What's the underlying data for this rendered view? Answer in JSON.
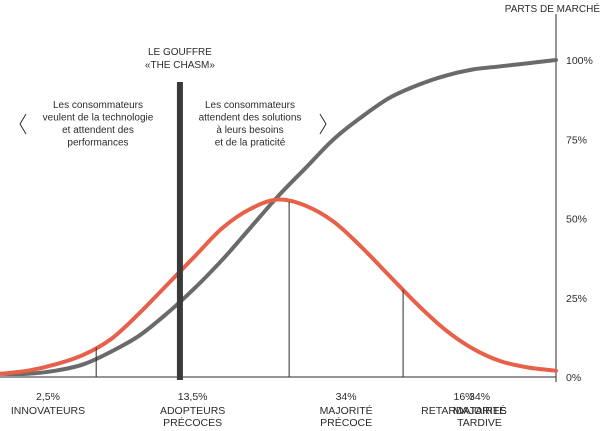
{
  "chart_data": {
    "type": "line",
    "title": "",
    "ylabel": "PARTS DE MARCHÉ",
    "xlabel": "",
    "ylim": [
      0,
      100
    ],
    "y_ticks": [
      "100%",
      "75%",
      "50%",
      "25%",
      "0%"
    ],
    "x": [
      0,
      5,
      10,
      15,
      20,
      25,
      30,
      35,
      40,
      45,
      50,
      55,
      60,
      65,
      70,
      75,
      80,
      85,
      90,
      95,
      100
    ],
    "series": [
      {
        "values": [
          1,
          1,
          2,
          4,
          8,
          13,
          20,
          28,
          37,
          47,
          57,
          66,
          75,
          82,
          88,
          92,
          95,
          97,
          98,
          99,
          100
        ],
        "color": "#6a6a6a"
      },
      {
        "values": [
          1,
          2,
          4,
          7,
          12,
          20,
          29,
          38,
          47,
          53,
          56,
          54,
          49,
          41,
          32,
          23,
          15,
          9,
          5,
          3,
          2
        ],
        "color": "#e8604a"
      }
    ],
    "chasm": {
      "x": 32,
      "title_line1": "LE GOUFFRE",
      "title_line2": "«THE CHASM»"
    },
    "left_note": [
      "Les consommateurs",
      "veulent de la technologie",
      "et attendent des",
      "performances"
    ],
    "right_note": [
      "Les consommateurs",
      "attendent des solutions",
      "à leurs besoins",
      "et de la praticité"
    ],
    "segment_boundaries": [
      17.3,
      52,
      72.5
    ],
    "segments": [
      {
        "share": "2,5%",
        "name_lines": [
          "INNOVATEURS"
        ]
      },
      {
        "share": "13,5%",
        "name_lines": [
          "ADOPTEURS",
          "PRÉCOCES"
        ]
      },
      {
        "share": "34%",
        "name_lines": [
          "MAJORITÉ",
          "PRÉCOCE"
        ]
      },
      {
        "share": "34%",
        "name_lines": [
          "MAJORITÉ",
          "TARDIVE"
        ]
      },
      {
        "share": "16%",
        "name_lines": [
          "RETARDATAIRES"
        ]
      }
    ],
    "legend": "none",
    "grid": false
  }
}
